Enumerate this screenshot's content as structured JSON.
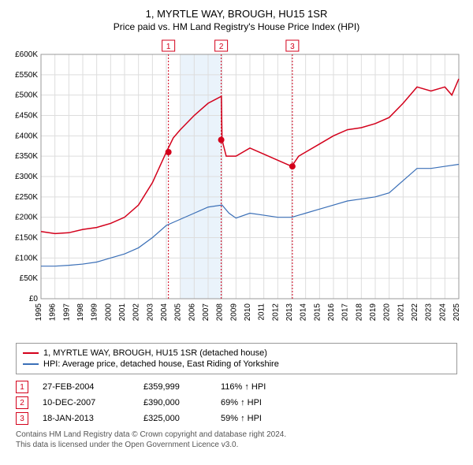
{
  "title": "1, MYRTLE WAY, BROUGH, HU15 1SR",
  "subtitle": "Price paid vs. HM Land Registry's House Price Index (HPI)",
  "chart": {
    "type": "line",
    "background_color": "#ffffff",
    "grid_color": "#dddddd",
    "highlight_band_color": "#eaf3fb",
    "highlight_band_range": [
      2005,
      2008
    ],
    "x": {
      "min": 1995,
      "max": 2025,
      "ticks": [
        1995,
        1996,
        1997,
        1998,
        1999,
        2000,
        2001,
        2002,
        2003,
        2004,
        2005,
        2006,
        2007,
        2008,
        2009,
        2010,
        2011,
        2012,
        2013,
        2014,
        2015,
        2016,
        2017,
        2018,
        2019,
        2020,
        2021,
        2022,
        2023,
        2024,
        2025
      ],
      "label_fontsize": 10,
      "label_rotation": -90
    },
    "y": {
      "min": 0,
      "max": 600000,
      "ticks": [
        0,
        50000,
        100000,
        150000,
        200000,
        250000,
        300000,
        350000,
        400000,
        450000,
        500000,
        550000,
        600000
      ],
      "tick_labels": [
        "£0",
        "£50K",
        "£100K",
        "£150K",
        "£200K",
        "£250K",
        "£300K",
        "£350K",
        "£400K",
        "£450K",
        "£500K",
        "£550K",
        "£600K"
      ],
      "label_fontsize": 10
    },
    "series": [
      {
        "name": "1, MYRTLE WAY, BROUGH, HU15 1SR (detached house)",
        "color": "#d3001b",
        "line_width": 1.5,
        "data": [
          [
            1995,
            165000
          ],
          [
            1996,
            160000
          ],
          [
            1997,
            162000
          ],
          [
            1998,
            170000
          ],
          [
            1999,
            175000
          ],
          [
            2000,
            185000
          ],
          [
            2001,
            200000
          ],
          [
            2002,
            230000
          ],
          [
            2003,
            285000
          ],
          [
            2004,
            359999
          ],
          [
            2004.5,
            395000
          ],
          [
            2005,
            415000
          ],
          [
            2006,
            450000
          ],
          [
            2007,
            480000
          ],
          [
            2007.95,
            497000
          ],
          [
            2008,
            390000
          ],
          [
            2008.3,
            350000
          ],
          [
            2009,
            350000
          ],
          [
            2010,
            370000
          ],
          [
            2011,
            355000
          ],
          [
            2012,
            340000
          ],
          [
            2013,
            325000
          ],
          [
            2013.5,
            350000
          ],
          [
            2014,
            360000
          ],
          [
            2015,
            380000
          ],
          [
            2016,
            400000
          ],
          [
            2017,
            415000
          ],
          [
            2018,
            420000
          ],
          [
            2019,
            430000
          ],
          [
            2020,
            445000
          ],
          [
            2021,
            480000
          ],
          [
            2022,
            520000
          ],
          [
            2023,
            510000
          ],
          [
            2024,
            520000
          ],
          [
            2024.5,
            500000
          ],
          [
            2025,
            540000
          ]
        ]
      },
      {
        "name": "HPI: Average price, detached house, East Riding of Yorkshire",
        "color": "#3a6fb7",
        "line_width": 1.2,
        "data": [
          [
            1995,
            80000
          ],
          [
            1996,
            80000
          ],
          [
            1997,
            82000
          ],
          [
            1998,
            85000
          ],
          [
            1999,
            90000
          ],
          [
            2000,
            100000
          ],
          [
            2001,
            110000
          ],
          [
            2002,
            125000
          ],
          [
            2003,
            150000
          ],
          [
            2004,
            180000
          ],
          [
            2005,
            195000
          ],
          [
            2006,
            210000
          ],
          [
            2007,
            225000
          ],
          [
            2008,
            230000
          ],
          [
            2008.5,
            210000
          ],
          [
            2009,
            198000
          ],
          [
            2010,
            210000
          ],
          [
            2011,
            205000
          ],
          [
            2012,
            200000
          ],
          [
            2013,
            200000
          ],
          [
            2014,
            210000
          ],
          [
            2015,
            220000
          ],
          [
            2016,
            230000
          ],
          [
            2017,
            240000
          ],
          [
            2018,
            245000
          ],
          [
            2019,
            250000
          ],
          [
            2020,
            260000
          ],
          [
            2021,
            290000
          ],
          [
            2022,
            320000
          ],
          [
            2023,
            320000
          ],
          [
            2024,
            325000
          ],
          [
            2025,
            330000
          ]
        ]
      }
    ],
    "markers": [
      {
        "n": "1",
        "x": 2004.15,
        "y": 359999,
        "line_color": "#d3001b"
      },
      {
        "n": "2",
        "x": 2007.94,
        "y": 390000,
        "line_color": "#d3001b"
      },
      {
        "n": "3",
        "x": 2013.05,
        "y": 325000,
        "line_color": "#d3001b"
      }
    ],
    "marker_badge_border": "#d3001b",
    "marker_badge_text": "#d3001b",
    "marker_point_fill": "#d3001b"
  },
  "legend": {
    "items": [
      {
        "label": "1, MYRTLE WAY, BROUGH, HU15 1SR (detached house)",
        "color": "#d3001b"
      },
      {
        "label": "HPI: Average price, detached house, East Riding of Yorkshire",
        "color": "#3a6fb7"
      }
    ]
  },
  "marker_table": [
    {
      "n": "1",
      "date": "27-FEB-2004",
      "price": "£359,999",
      "pct": "116% ↑ HPI"
    },
    {
      "n": "2",
      "date": "10-DEC-2007",
      "price": "£390,000",
      "pct": "69% ↑ HPI"
    },
    {
      "n": "3",
      "date": "18-JAN-2013",
      "price": "£325,000",
      "pct": "59% ↑ HPI"
    }
  ],
  "footer_line1": "Contains HM Land Registry data © Crown copyright and database right 2024.",
  "footer_line2": "This data is licensed under the Open Government Licence v3.0."
}
